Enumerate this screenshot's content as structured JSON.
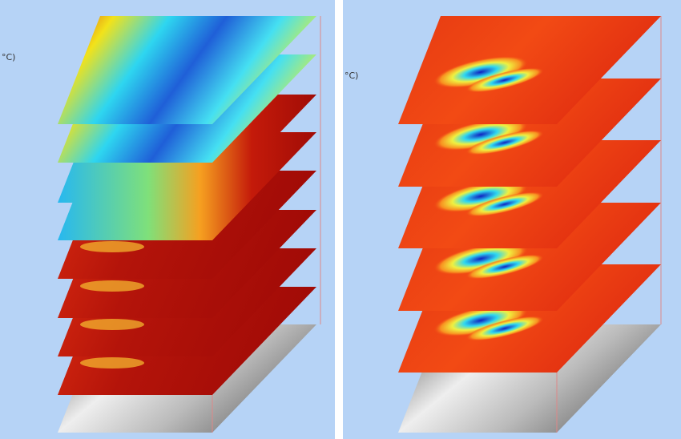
{
  "panels": [
    {
      "unit_label": "°C)"
    },
    {
      "unit_label": "°C)"
    }
  ]
}
